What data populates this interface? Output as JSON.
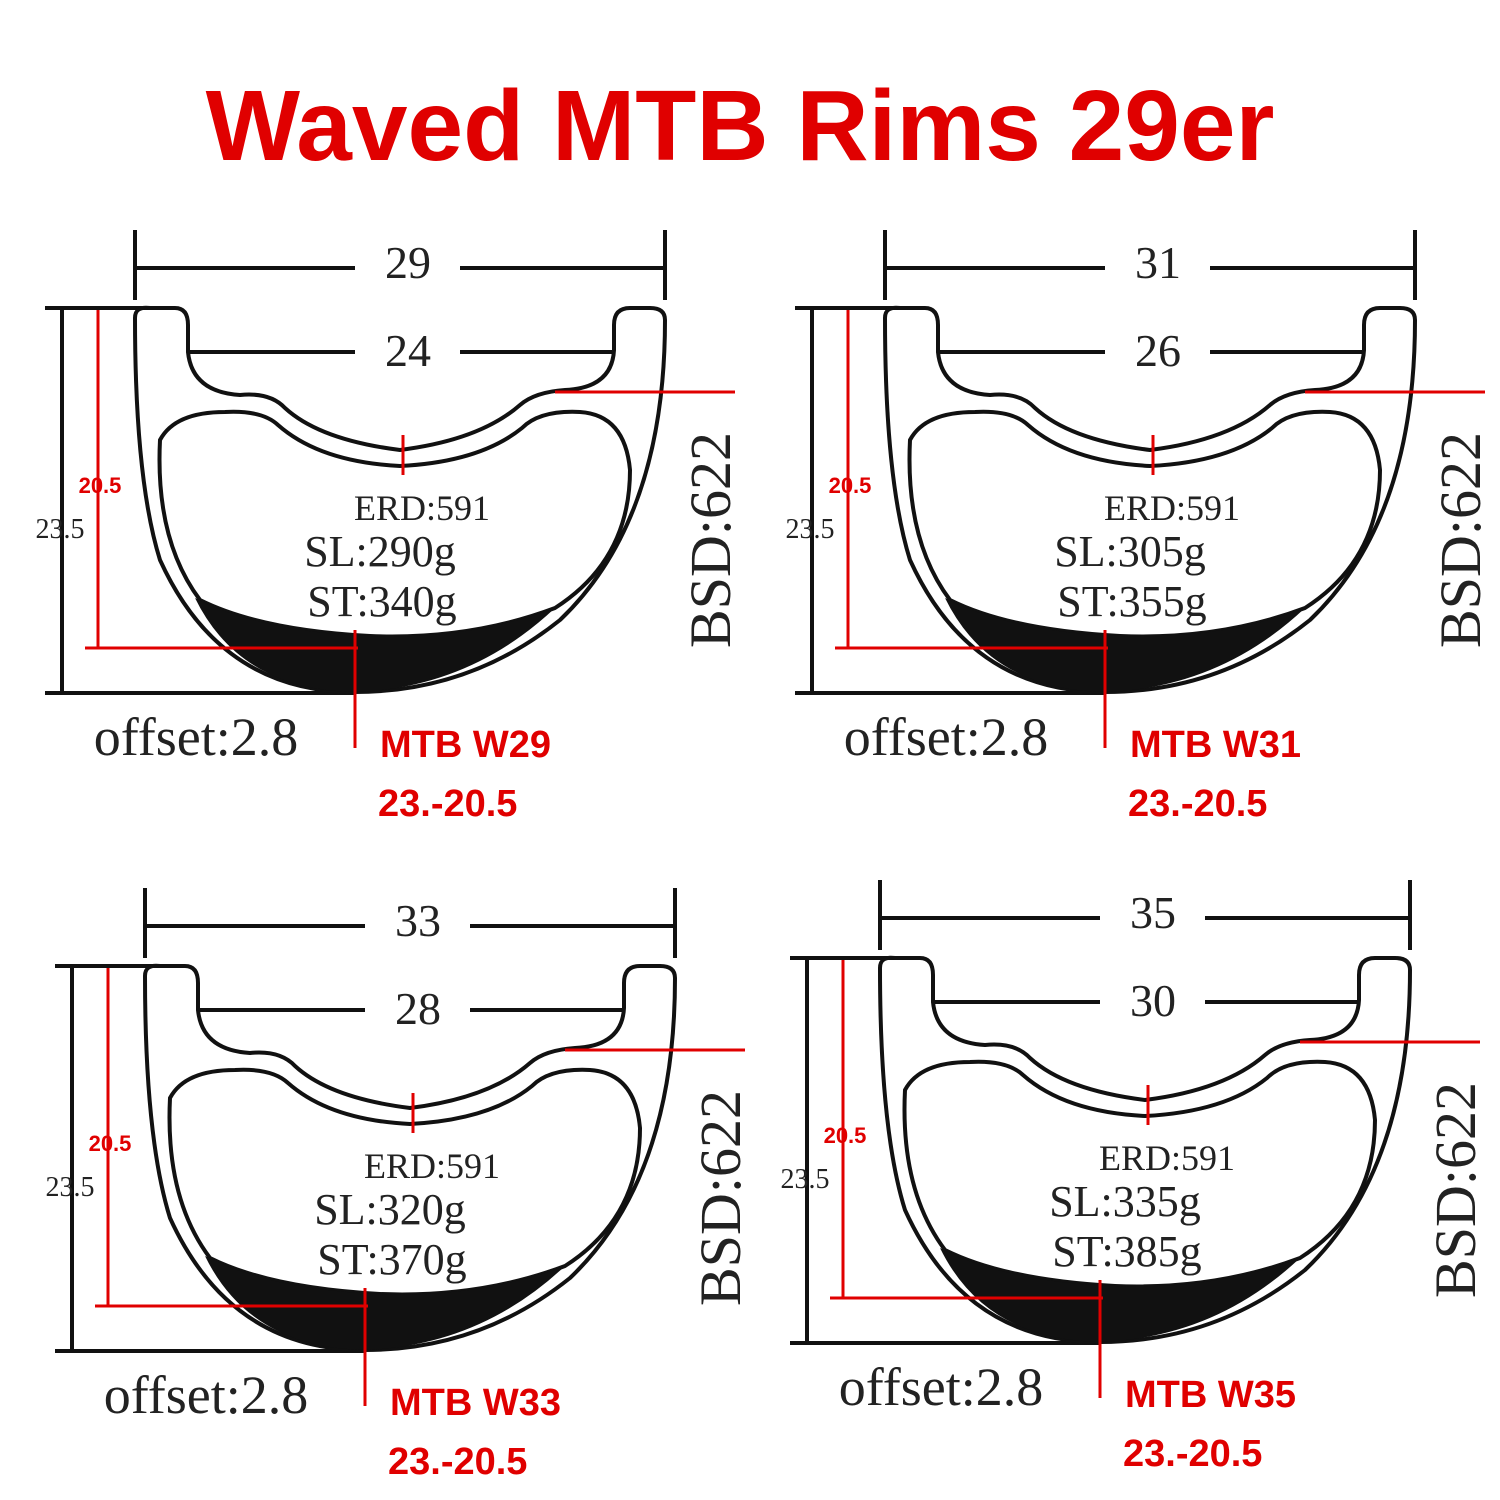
{
  "title": "Waved MTB Rims 29er",
  "diagrams": [
    {
      "outer_width": "29",
      "inner_width": "24",
      "inner_depth": "20.5",
      "outer_depth": "23.5",
      "erd": "ERD:591",
      "weight_sl": "SL:290g",
      "weight_st": "ST:340g",
      "bsd": "BSD:622",
      "offset": "offset:2.8",
      "model": "MTB W29",
      "spec": "23.-20.5"
    },
    {
      "outer_width": "31",
      "inner_width": "26",
      "inner_depth": "20.5",
      "outer_depth": "23.5",
      "erd": "ERD:591",
      "weight_sl": "SL:305g",
      "weight_st": "ST:355g",
      "bsd": "BSD:622",
      "offset": "offset:2.8",
      "model": "MTB W31",
      "spec": "23.-20.5"
    },
    {
      "outer_width": "33",
      "inner_width": "28",
      "inner_depth": "20.5",
      "outer_depth": "23.5",
      "erd": "ERD:591",
      "weight_sl": "SL:320g",
      "weight_st": "ST:370g",
      "bsd": "BSD:622",
      "offset": "offset:2.8",
      "model": "MTB W33",
      "spec": "23.-20.5"
    },
    {
      "outer_width": "35",
      "inner_width": "30",
      "inner_depth": "20.5",
      "outer_depth": "23.5",
      "erd": "ERD:591",
      "weight_sl": "SL:335g",
      "weight_st": "ST:385g",
      "bsd": "BSD:622",
      "offset": "offset:2.8",
      "model": "MTB W35",
      "spec": "23.-20.5"
    }
  ]
}
